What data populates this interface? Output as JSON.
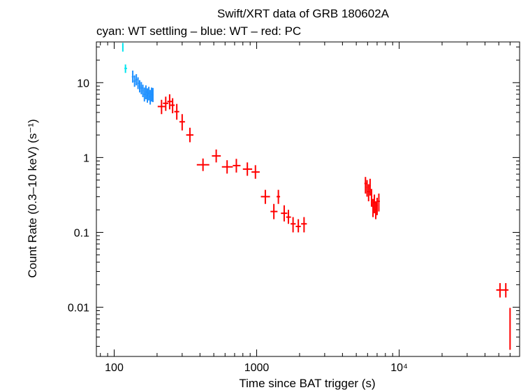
{
  "chart_data": {
    "type": "scatter",
    "title": "Swift/XRT data of GRB 180602A",
    "subtitle": "cyan: WT settling – blue: WT – red: PC",
    "xlabel": "Time since BAT trigger (s)",
    "ylabel": "Count Rate (0.3–10 keV) (s⁻¹)",
    "xscale": "log",
    "yscale": "log",
    "xlim": [
      75,
      70000
    ],
    "ylim": [
      0.0022,
      35
    ],
    "x_ticks": [
      {
        "value": 100,
        "label": "100"
      },
      {
        "value": 1000,
        "label": "1000"
      },
      {
        "value": 10000,
        "label": "10⁴"
      }
    ],
    "y_ticks": [
      {
        "value": 0.01,
        "label": "0.01"
      },
      {
        "value": 0.1,
        "label": "0.1"
      },
      {
        "value": 1,
        "label": "1"
      },
      {
        "value": 10,
        "label": "10"
      }
    ],
    "colors": {
      "wt_settling": "#00e5ee",
      "wt": "#1e90ff",
      "pc": "#ff0000",
      "axis": "#000000"
    },
    "series": [
      {
        "name": "WT settling",
        "color": "#00e5ee",
        "points": [
          {
            "x": 115,
            "y": 30,
            "xlo": 114,
            "xhi": 116,
            "ylo": 26,
            "yhi": 34
          },
          {
            "x": 120,
            "y": 15.5,
            "xlo": 118,
            "xhi": 123,
            "ylo": 13.5,
            "yhi": 17.5
          }
        ]
      },
      {
        "name": "WT",
        "color": "#1e90ff",
        "points": [
          {
            "x": 135,
            "y": 12.0,
            "xlo": 133,
            "xhi": 137,
            "ylo": 10.0,
            "yhi": 14.5
          },
          {
            "x": 139,
            "y": 10.5,
            "xlo": 137,
            "xhi": 141,
            "ylo": 8.8,
            "yhi": 12.5
          },
          {
            "x": 143,
            "y": 11.0,
            "xlo": 141,
            "xhi": 145,
            "ylo": 9.2,
            "yhi": 13.0
          },
          {
            "x": 147,
            "y": 9.8,
            "xlo": 145,
            "xhi": 149,
            "ylo": 8.2,
            "yhi": 11.8
          },
          {
            "x": 151,
            "y": 9.0,
            "xlo": 149,
            "xhi": 153,
            "ylo": 7.4,
            "yhi": 10.8
          },
          {
            "x": 155,
            "y": 8.5,
            "xlo": 153,
            "xhi": 157,
            "ylo": 7.0,
            "yhi": 10.2
          },
          {
            "x": 159,
            "y": 7.8,
            "xlo": 157,
            "xhi": 161,
            "ylo": 6.4,
            "yhi": 9.4
          },
          {
            "x": 163,
            "y": 7.0,
            "xlo": 161,
            "xhi": 165,
            "ylo": 5.6,
            "yhi": 8.6
          },
          {
            "x": 167,
            "y": 7.5,
            "xlo": 165,
            "xhi": 169,
            "ylo": 6.0,
            "yhi": 9.2
          },
          {
            "x": 171,
            "y": 6.8,
            "xlo": 169,
            "xhi": 173,
            "ylo": 5.4,
            "yhi": 8.4
          },
          {
            "x": 175,
            "y": 7.2,
            "xlo": 173,
            "xhi": 177,
            "ylo": 5.8,
            "yhi": 8.8
          },
          {
            "x": 179,
            "y": 6.5,
            "xlo": 177,
            "xhi": 181,
            "ylo": 5.1,
            "yhi": 8.0
          },
          {
            "x": 183,
            "y": 7.0,
            "xlo": 181,
            "xhi": 185,
            "ylo": 5.6,
            "yhi": 8.6
          },
          {
            "x": 187,
            "y": 6.9,
            "xlo": 185,
            "xhi": 189,
            "ylo": 5.5,
            "yhi": 8.5
          }
        ]
      },
      {
        "name": "PC",
        "color": "#ff0000",
        "points": [
          {
            "x": 215,
            "y": 4.8,
            "xlo": 202,
            "xhi": 228,
            "ylo": 3.8,
            "yhi": 5.9
          },
          {
            "x": 230,
            "y": 5.3,
            "xlo": 220,
            "xhi": 240,
            "ylo": 4.2,
            "yhi": 6.5
          },
          {
            "x": 245,
            "y": 5.6,
            "xlo": 236,
            "xhi": 255,
            "ylo": 4.4,
            "yhi": 7.0
          },
          {
            "x": 257,
            "y": 5.0,
            "xlo": 248,
            "xhi": 266,
            "ylo": 3.9,
            "yhi": 6.2
          },
          {
            "x": 275,
            "y": 4.1,
            "xlo": 264,
            "xhi": 286,
            "ylo": 3.2,
            "yhi": 5.2
          },
          {
            "x": 300,
            "y": 3.0,
            "xlo": 287,
            "xhi": 314,
            "ylo": 2.3,
            "yhi": 3.8
          },
          {
            "x": 340,
            "y": 2.0,
            "xlo": 320,
            "xhi": 360,
            "ylo": 1.6,
            "yhi": 2.5
          },
          {
            "x": 420,
            "y": 0.8,
            "xlo": 380,
            "xhi": 465,
            "ylo": 0.66,
            "yhi": 0.97
          },
          {
            "x": 520,
            "y": 1.05,
            "xlo": 485,
            "xhi": 560,
            "ylo": 0.86,
            "yhi": 1.28
          },
          {
            "x": 620,
            "y": 0.75,
            "xlo": 570,
            "xhi": 680,
            "ylo": 0.61,
            "yhi": 0.92
          },
          {
            "x": 720,
            "y": 0.78,
            "xlo": 680,
            "xhi": 770,
            "ylo": 0.63,
            "yhi": 0.96
          },
          {
            "x": 860,
            "y": 0.7,
            "xlo": 800,
            "xhi": 930,
            "ylo": 0.57,
            "yhi": 0.86
          },
          {
            "x": 980,
            "y": 0.64,
            "xlo": 920,
            "xhi": 1050,
            "ylo": 0.52,
            "yhi": 0.79
          },
          {
            "x": 1150,
            "y": 0.3,
            "xlo": 1070,
            "xhi": 1240,
            "ylo": 0.24,
            "yhi": 0.37
          },
          {
            "x": 1320,
            "y": 0.19,
            "xlo": 1250,
            "xhi": 1400,
            "ylo": 0.15,
            "yhi": 0.24
          },
          {
            "x": 1420,
            "y": 0.3,
            "xlo": 1380,
            "xhi": 1460,
            "ylo": 0.24,
            "yhi": 0.37
          },
          {
            "x": 1560,
            "y": 0.18,
            "xlo": 1480,
            "xhi": 1640,
            "ylo": 0.14,
            "yhi": 0.23
          },
          {
            "x": 1670,
            "y": 0.16,
            "xlo": 1610,
            "xhi": 1740,
            "ylo": 0.13,
            "yhi": 0.2
          },
          {
            "x": 1800,
            "y": 0.13,
            "xlo": 1730,
            "xhi": 1880,
            "ylo": 0.1,
            "yhi": 0.16
          },
          {
            "x": 1960,
            "y": 0.12,
            "xlo": 1880,
            "xhi": 2040,
            "ylo": 0.1,
            "yhi": 0.15
          },
          {
            "x": 2150,
            "y": 0.13,
            "xlo": 2050,
            "xhi": 2250,
            "ylo": 0.1,
            "yhi": 0.16
          },
          {
            "x": 5800,
            "y": 0.45,
            "xlo": 5700,
            "xhi": 5900,
            "ylo": 0.33,
            "yhi": 0.55
          },
          {
            "x": 5950,
            "y": 0.4,
            "xlo": 5880,
            "xhi": 6020,
            "ylo": 0.3,
            "yhi": 0.5
          },
          {
            "x": 6100,
            "y": 0.35,
            "xlo": 6020,
            "xhi": 6180,
            "ylo": 0.26,
            "yhi": 0.44
          },
          {
            "x": 6250,
            "y": 0.42,
            "xlo": 6180,
            "xhi": 6320,
            "ylo": 0.31,
            "yhi": 0.52
          },
          {
            "x": 6400,
            "y": 0.3,
            "xlo": 6320,
            "xhi": 6480,
            "ylo": 0.22,
            "yhi": 0.38
          },
          {
            "x": 6550,
            "y": 0.22,
            "xlo": 6480,
            "xhi": 6620,
            "ylo": 0.16,
            "yhi": 0.28
          },
          {
            "x": 6700,
            "y": 0.25,
            "xlo": 6620,
            "xhi": 6780,
            "ylo": 0.18,
            "yhi": 0.32
          },
          {
            "x": 6850,
            "y": 0.2,
            "xlo": 6780,
            "xhi": 6920,
            "ylo": 0.15,
            "yhi": 0.26
          },
          {
            "x": 7000,
            "y": 0.23,
            "xlo": 6920,
            "xhi": 7080,
            "ylo": 0.17,
            "yhi": 0.29
          },
          {
            "x": 7200,
            "y": 0.26,
            "xlo": 7080,
            "xhi": 7320,
            "ylo": 0.19,
            "yhi": 0.33
          },
          {
            "x": 51000,
            "y": 0.017,
            "xlo": 48000,
            "xhi": 54000,
            "ylo": 0.0135,
            "yhi": 0.021
          },
          {
            "x": 56000,
            "y": 0.017,
            "xlo": 54000,
            "xhi": 58500,
            "ylo": 0.0135,
            "yhi": 0.021
          },
          {
            "x": 60000,
            "y": 0.0052,
            "xlo": 59700,
            "xhi": 60300,
            "ylo": 0.0027,
            "yhi": 0.0098
          }
        ]
      }
    ]
  }
}
